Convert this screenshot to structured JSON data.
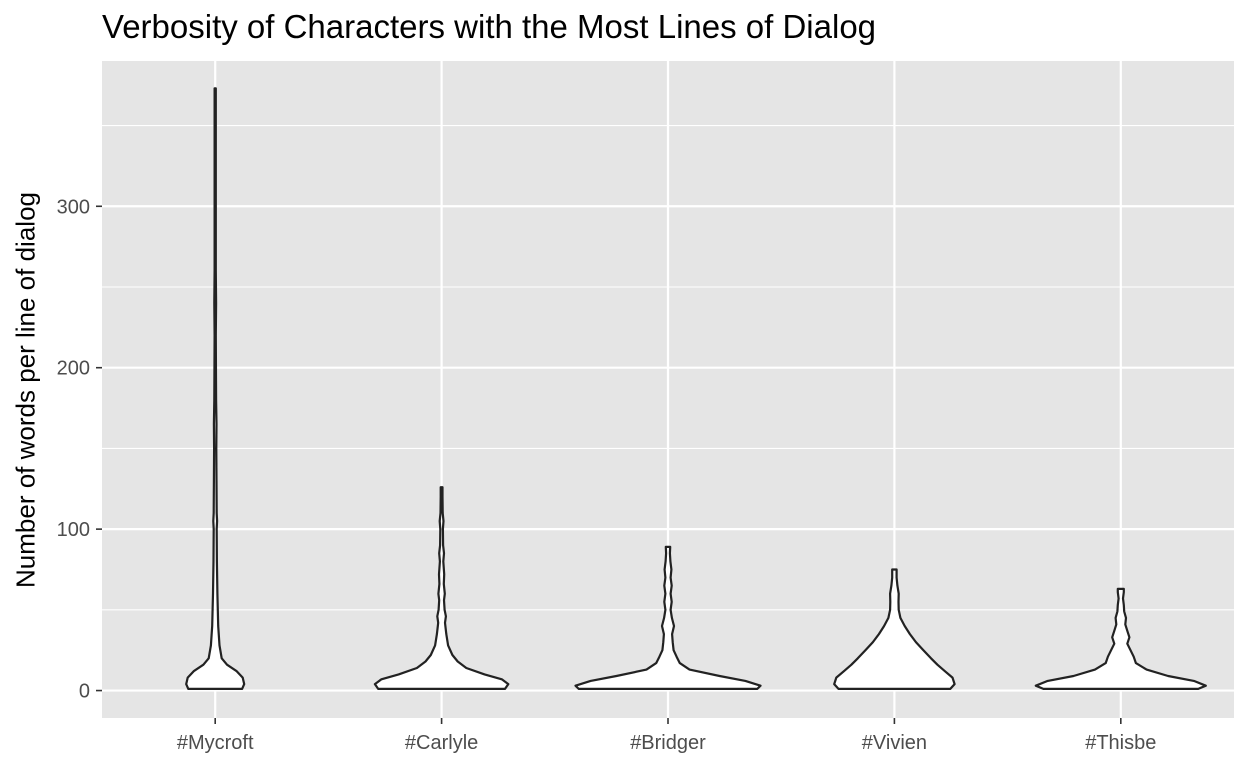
{
  "chart_data": {
    "type": "violin",
    "title": "Verbosity of Characters with the Most Lines of Dialog",
    "xlabel": "",
    "ylabel": "Number of words per line of dialog",
    "categories": [
      "#Mycroft",
      "#Carlyle",
      "#Bridger",
      "#Vivien",
      "#Thisbe"
    ],
    "y_ticks": [
      0,
      100,
      200,
      300
    ],
    "y_tick_labels": [
      "0",
      "100",
      "200",
      "300"
    ],
    "ylim": [
      -17,
      390
    ],
    "grid": true,
    "colors": {
      "panel": "#e5e5e5",
      "grid": "#ffffff",
      "outline": "#222222",
      "fill": "#ffffff"
    },
    "series": [
      {
        "category": "#Mycroft",
        "min": 1,
        "max": 373,
        "profile": [
          [
            1,
            0.125
          ],
          [
            4,
            0.135
          ],
          [
            8,
            0.128
          ],
          [
            12,
            0.1
          ],
          [
            16,
            0.055
          ],
          [
            20,
            0.03
          ],
          [
            28,
            0.02
          ],
          [
            40,
            0.014
          ],
          [
            60,
            0.01
          ],
          [
            80,
            0.008
          ],
          [
            100,
            0.007
          ],
          [
            105,
            0.009
          ],
          [
            110,
            0.007
          ],
          [
            130,
            0.006
          ],
          [
            150,
            0.005
          ],
          [
            165,
            0.006
          ],
          [
            180,
            0.004
          ],
          [
            220,
            0.003
          ],
          [
            240,
            0.004
          ],
          [
            260,
            0.003
          ],
          [
            300,
            0.003
          ],
          [
            340,
            0.003
          ],
          [
            373,
            0.003
          ]
        ]
      },
      {
        "category": "#Carlyle",
        "min": 1,
        "max": 126,
        "profile": [
          [
            1,
            0.295
          ],
          [
            4,
            0.31
          ],
          [
            7,
            0.28
          ],
          [
            10,
            0.2
          ],
          [
            14,
            0.115
          ],
          [
            18,
            0.075
          ],
          [
            22,
            0.05
          ],
          [
            28,
            0.03
          ],
          [
            35,
            0.022
          ],
          [
            42,
            0.016
          ],
          [
            46,
            0.02
          ],
          [
            50,
            0.014
          ],
          [
            56,
            0.011
          ],
          [
            60,
            0.015
          ],
          [
            66,
            0.01
          ],
          [
            72,
            0.012
          ],
          [
            80,
            0.008
          ],
          [
            85,
            0.011
          ],
          [
            90,
            0.007
          ],
          [
            100,
            0.006
          ],
          [
            105,
            0.009
          ],
          [
            110,
            0.005
          ],
          [
            120,
            0.004
          ],
          [
            126,
            0.004
          ]
        ]
      },
      {
        "category": "#Bridger",
        "min": 1,
        "max": 89,
        "profile": [
          [
            1,
            0.415
          ],
          [
            3,
            0.43
          ],
          [
            6,
            0.36
          ],
          [
            9,
            0.24
          ],
          [
            13,
            0.1
          ],
          [
            17,
            0.055
          ],
          [
            21,
            0.04
          ],
          [
            25,
            0.026
          ],
          [
            30,
            0.022
          ],
          [
            35,
            0.019
          ],
          [
            40,
            0.028
          ],
          [
            45,
            0.018
          ],
          [
            50,
            0.012
          ],
          [
            55,
            0.017
          ],
          [
            60,
            0.012
          ],
          [
            65,
            0.017
          ],
          [
            70,
            0.012
          ],
          [
            75,
            0.016
          ],
          [
            80,
            0.011
          ],
          [
            85,
            0.009
          ],
          [
            89,
            0.01
          ]
        ]
      },
      {
        "category": "#Vivien",
        "min": 1,
        "max": 75,
        "profile": [
          [
            1,
            0.26
          ],
          [
            4,
            0.28
          ],
          [
            8,
            0.27
          ],
          [
            12,
            0.235
          ],
          [
            16,
            0.2
          ],
          [
            20,
            0.17
          ],
          [
            25,
            0.135
          ],
          [
            30,
            0.1
          ],
          [
            35,
            0.072
          ],
          [
            40,
            0.048
          ],
          [
            45,
            0.028
          ],
          [
            50,
            0.02
          ],
          [
            55,
            0.019
          ],
          [
            60,
            0.02
          ],
          [
            65,
            0.014
          ],
          [
            70,
            0.01
          ],
          [
            75,
            0.01
          ]
        ]
      },
      {
        "category": "#Thisbe",
        "min": 1,
        "max": 63,
        "profile": [
          [
            1,
            0.36
          ],
          [
            3,
            0.395
          ],
          [
            6,
            0.34
          ],
          [
            9,
            0.22
          ],
          [
            13,
            0.12
          ],
          [
            17,
            0.07
          ],
          [
            21,
            0.06
          ],
          [
            25,
            0.045
          ],
          [
            29,
            0.03
          ],
          [
            33,
            0.04
          ],
          [
            37,
            0.03
          ],
          [
            41,
            0.021
          ],
          [
            45,
            0.024
          ],
          [
            49,
            0.016
          ],
          [
            53,
            0.014
          ],
          [
            57,
            0.01
          ],
          [
            61,
            0.014
          ],
          [
            63,
            0.014
          ]
        ]
      }
    ]
  }
}
